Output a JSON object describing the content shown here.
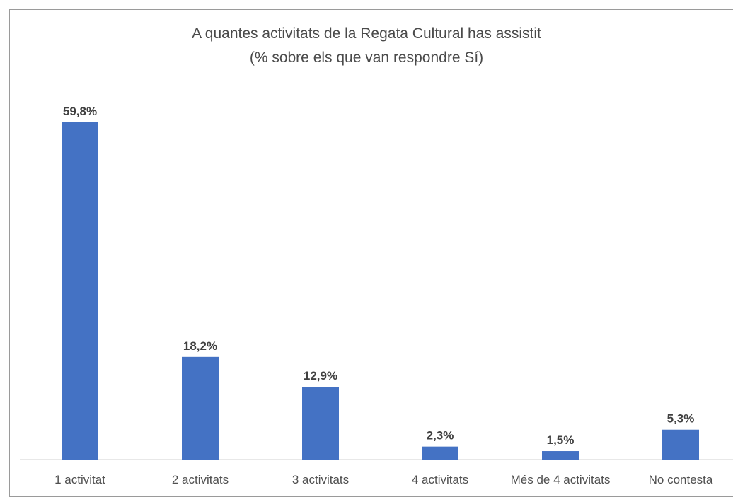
{
  "chart_data": {
    "type": "bar",
    "title": "A quantes activitats de la Regata Cultural has assistit",
    "subtitle": "(% sobre els que van respondre Sí)",
    "categories": [
      "1 activitat",
      "2 activitats",
      "3 activitats",
      "4 activitats",
      "Més de 4 activitats",
      "No contesta"
    ],
    "values": [
      59.8,
      18.2,
      12.9,
      2.3,
      1.5,
      5.3
    ],
    "value_labels": [
      "59,8%",
      "18,2%",
      "12,9%",
      "2,3%",
      "1,5%",
      "5,3%"
    ],
    "xlabel": "",
    "ylabel": "",
    "ylim": [
      0,
      60
    ],
    "grid": false,
    "legend": "none",
    "bar_color": "#4472c4"
  }
}
